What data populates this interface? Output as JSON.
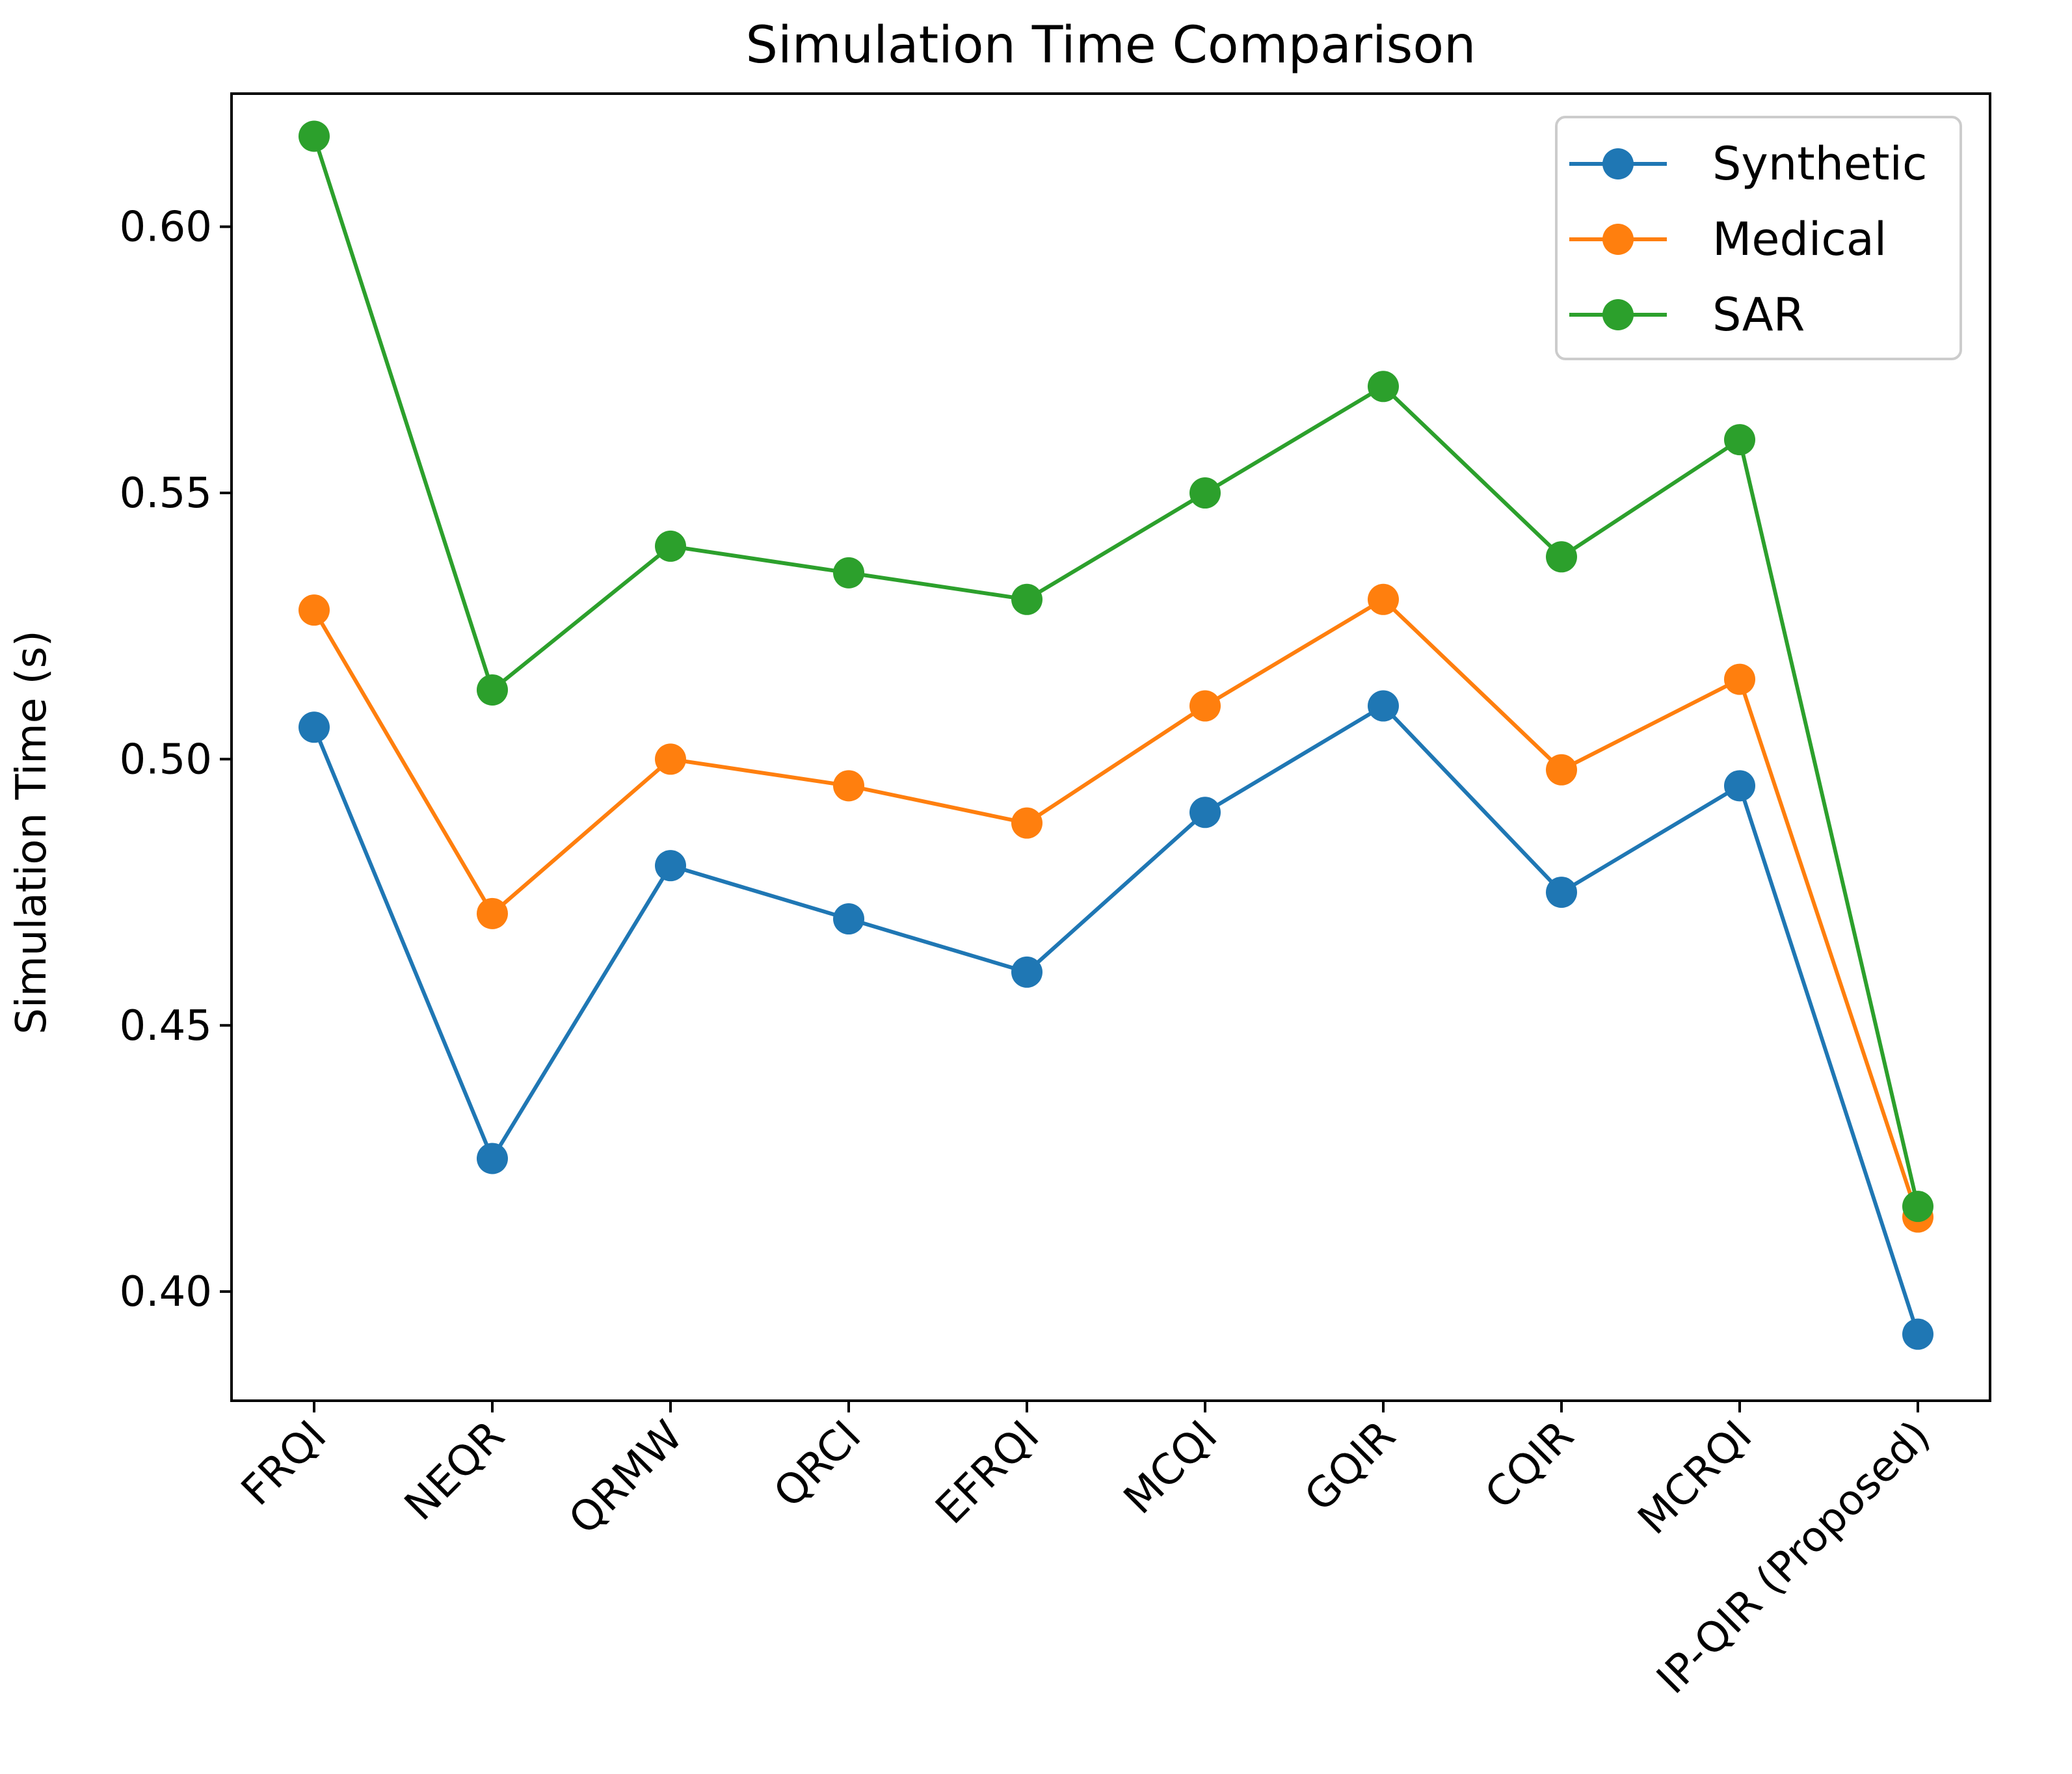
{
  "chart_data": {
    "type": "line",
    "title": "Simulation Time Comparison",
    "xlabel": "",
    "ylabel": "Simulation Time (s)",
    "categories": [
      "FRQI",
      "NEQR",
      "QRMW",
      "QRCI",
      "EFRQI",
      "MCQI",
      "GQIR",
      "CQIR",
      "MCRQI",
      "IP-QIR (Proposed)"
    ],
    "ylim": [
      0.3795,
      0.625
    ],
    "yticks": [
      0.4,
      0.45,
      0.5,
      0.55,
      0.6
    ],
    "ytick_labels": [
      "0.40",
      "0.45",
      "0.50",
      "0.55",
      "0.60"
    ],
    "grid": false,
    "legend_position": "top-right",
    "series": [
      {
        "name": "Synthetic",
        "color": "#1f77b4",
        "marker": "circle",
        "values": [
          0.506,
          0.425,
          0.48,
          0.47,
          0.46,
          0.49,
          0.51,
          0.475,
          0.495,
          0.392
        ]
      },
      {
        "name": "Medical",
        "color": "#ff7f0e",
        "marker": "circle",
        "values": [
          0.528,
          0.471,
          0.5,
          0.495,
          0.488,
          0.51,
          0.53,
          0.498,
          0.515,
          0.414
        ]
      },
      {
        "name": "SAR",
        "color": "#2ca02c",
        "marker": "circle",
        "values": [
          0.617,
          0.513,
          0.54,
          0.535,
          0.53,
          0.55,
          0.57,
          0.538,
          0.56,
          0.416
        ]
      }
    ]
  }
}
